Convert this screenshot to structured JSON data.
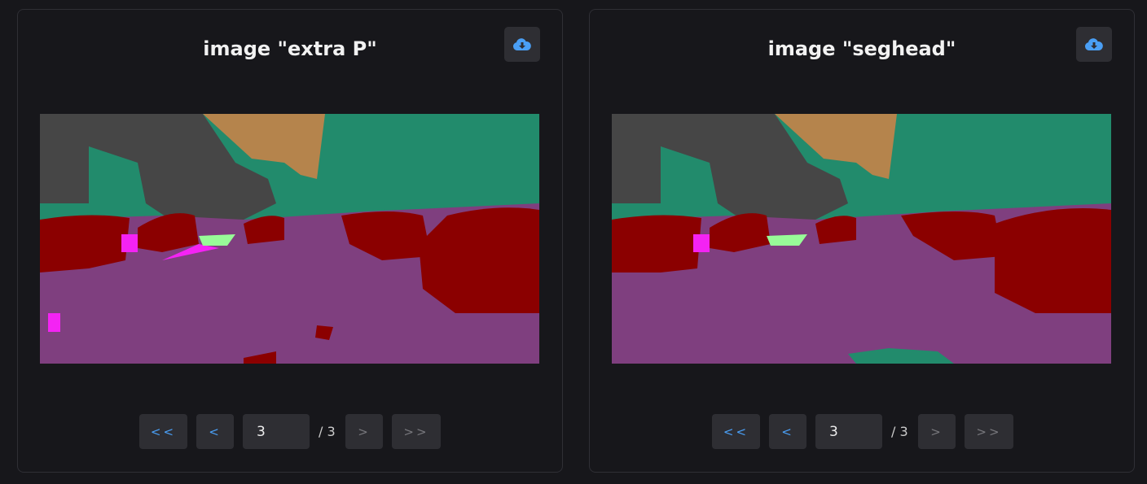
{
  "colors": {
    "road": "#7f3f7f",
    "vegetation": "#228b6c",
    "building": "#464646",
    "sky": "#b5844c",
    "car": "#8b0000",
    "sidewalk": "#f423f4",
    "terrain": "#98fb98",
    "pole": "#00d6dd",
    "accent": "#4a9ff5"
  },
  "panels": [
    {
      "title": "image \"extra P\"",
      "download_icon": "cloud-download-icon",
      "pager": {
        "first": "<<",
        "prev": "<",
        "page": "3",
        "of": "/ 3",
        "next": ">",
        "last": ">>"
      }
    },
    {
      "title": "image \"seghead\"",
      "download_icon": "cloud-download-icon",
      "pager": {
        "first": "<<",
        "prev": "<",
        "page": "3",
        "of": "/ 3",
        "next": ">",
        "last": ">>"
      }
    }
  ]
}
